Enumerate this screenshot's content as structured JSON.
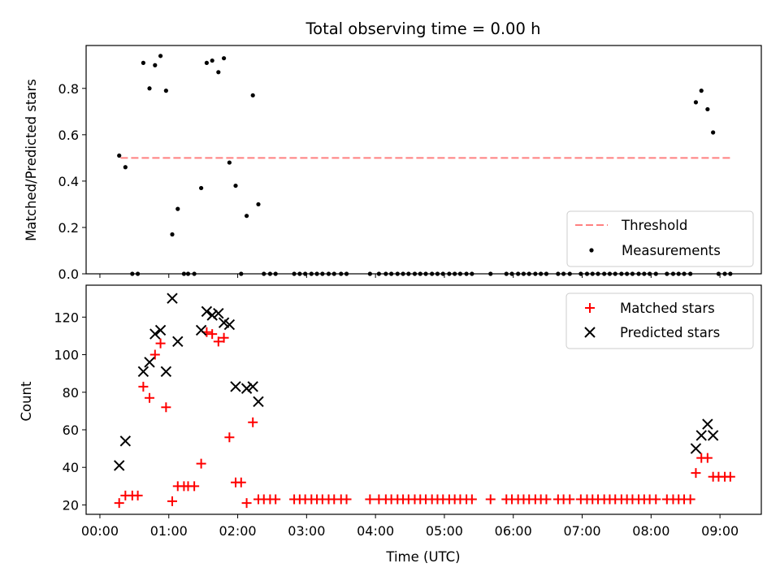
{
  "chart_data": [
    {
      "type": "scatter",
      "title": "Total observing time = 0.00 h",
      "xlabel": "",
      "ylabel": "Matched/Predicted stars",
      "xlim": [
        -0.2,
        9.6
      ],
      "ylim": [
        0.0,
        0.985
      ],
      "yticks": [
        0.0,
        0.2,
        0.4,
        0.6,
        0.8
      ],
      "ytick_labels": [
        "0.0",
        "0.2",
        "0.4",
        "0.6",
        "0.8"
      ],
      "legend_position": "lower-right",
      "grid": false,
      "series": [
        {
          "name": "Threshold",
          "kind": "dashed-line",
          "color": "#ff8080",
          "points": [
            [
              0.3,
              0.5
            ],
            [
              9.15,
              0.5
            ]
          ]
        },
        {
          "name": "Measurements",
          "kind": "dot",
          "color": "#000000",
          "points": [
            [
              0.28,
              0.51
            ],
            [
              0.37,
              0.46
            ],
            [
              0.47,
              0.0
            ],
            [
              0.55,
              0.0
            ],
            [
              0.63,
              0.91
            ],
            [
              0.72,
              0.8
            ],
            [
              0.8,
              0.9
            ],
            [
              0.88,
              0.94
            ],
            [
              0.96,
              0.79
            ],
            [
              1.05,
              0.17
            ],
            [
              1.13,
              0.28
            ],
            [
              1.22,
              0.0
            ],
            [
              1.28,
              0.0
            ],
            [
              1.37,
              0.0
            ],
            [
              1.47,
              0.37
            ],
            [
              1.55,
              0.91
            ],
            [
              1.63,
              0.92
            ],
            [
              1.72,
              0.87
            ],
            [
              1.8,
              0.93
            ],
            [
              1.88,
              0.48
            ],
            [
              1.97,
              0.38
            ],
            [
              2.05,
              0.0
            ],
            [
              2.13,
              0.25
            ],
            [
              2.22,
              0.77
            ],
            [
              2.3,
              0.3
            ],
            [
              2.38,
              0.0
            ],
            [
              2.47,
              0.0
            ],
            [
              2.55,
              0.0
            ],
            [
              2.82,
              0.0
            ],
            [
              2.9,
              0.0
            ],
            [
              2.98,
              0.0
            ],
            [
              3.07,
              0.0
            ],
            [
              3.15,
              0.0
            ],
            [
              3.23,
              0.0
            ],
            [
              3.32,
              0.0
            ],
            [
              3.4,
              0.0
            ],
            [
              3.5,
              0.0
            ],
            [
              3.58,
              0.0
            ],
            [
              3.92,
              0.0
            ],
            [
              4.05,
              0.0
            ],
            [
              4.15,
              0.0
            ],
            [
              4.23,
              0.0
            ],
            [
              4.32,
              0.0
            ],
            [
              4.4,
              0.0
            ],
            [
              4.48,
              0.0
            ],
            [
              4.57,
              0.0
            ],
            [
              4.65,
              0.0
            ],
            [
              4.73,
              0.0
            ],
            [
              4.82,
              0.0
            ],
            [
              4.9,
              0.0
            ],
            [
              4.98,
              0.0
            ],
            [
              5.07,
              0.0
            ],
            [
              5.15,
              0.0
            ],
            [
              5.23,
              0.0
            ],
            [
              5.32,
              0.0
            ],
            [
              5.4,
              0.0
            ],
            [
              5.67,
              0.0
            ],
            [
              5.9,
              0.0
            ],
            [
              5.98,
              0.0
            ],
            [
              6.07,
              0.0
            ],
            [
              6.15,
              0.0
            ],
            [
              6.23,
              0.0
            ],
            [
              6.32,
              0.0
            ],
            [
              6.4,
              0.0
            ],
            [
              6.48,
              0.0
            ],
            [
              6.65,
              0.0
            ],
            [
              6.73,
              0.0
            ],
            [
              6.82,
              0.0
            ],
            [
              6.98,
              0.0
            ],
            [
              7.07,
              0.0
            ],
            [
              7.15,
              0.0
            ],
            [
              7.23,
              0.0
            ],
            [
              7.32,
              0.0
            ],
            [
              7.4,
              0.0
            ],
            [
              7.48,
              0.0
            ],
            [
              7.57,
              0.0
            ],
            [
              7.65,
              0.0
            ],
            [
              7.73,
              0.0
            ],
            [
              7.82,
              0.0
            ],
            [
              7.9,
              0.0
            ],
            [
              7.98,
              0.0
            ],
            [
              8.07,
              0.0
            ],
            [
              8.23,
              0.0
            ],
            [
              8.32,
              0.0
            ],
            [
              8.4,
              0.0
            ],
            [
              8.48,
              0.0
            ],
            [
              8.57,
              0.0
            ],
            [
              8.65,
              0.74
            ],
            [
              8.73,
              0.79
            ],
            [
              8.82,
              0.71
            ],
            [
              8.9,
              0.61
            ],
            [
              8.98,
              0.0
            ],
            [
              9.07,
              0.0
            ],
            [
              9.15,
              0.0
            ]
          ]
        }
      ]
    },
    {
      "type": "scatter",
      "title": "",
      "xlabel": "Time (UTC)",
      "ylabel": "Count",
      "xlim": [
        -0.2,
        9.6
      ],
      "ylim": [
        15.0,
        137.0
      ],
      "xticks": [
        0,
        1,
        2,
        3,
        4,
        5,
        6,
        7,
        8,
        9
      ],
      "xtick_labels": [
        "00:00",
        "01:00",
        "02:00",
        "03:00",
        "04:00",
        "05:00",
        "06:00",
        "07:00",
        "08:00",
        "09:00"
      ],
      "yticks": [
        20,
        40,
        60,
        80,
        100,
        120
      ],
      "ytick_labels": [
        "20",
        "40",
        "60",
        "80",
        "100",
        "120"
      ],
      "legend_position": "upper-right",
      "grid": false,
      "series": [
        {
          "name": "Matched stars",
          "kind": "plus",
          "color": "#ff0000",
          "points": [
            [
              0.28,
              21
            ],
            [
              0.37,
              25
            ],
            [
              0.47,
              25
            ],
            [
              0.55,
              25
            ],
            [
              0.63,
              83
            ],
            [
              0.72,
              77
            ],
            [
              0.8,
              100
            ],
            [
              0.88,
              106
            ],
            [
              0.96,
              72
            ],
            [
              1.05,
              22
            ],
            [
              1.13,
              30
            ],
            [
              1.22,
              30
            ],
            [
              1.28,
              30
            ],
            [
              1.37,
              30
            ],
            [
              1.47,
              42
            ],
            [
              1.55,
              112
            ],
            [
              1.63,
              111
            ],
            [
              1.72,
              107
            ],
            [
              1.8,
              109
            ],
            [
              1.88,
              56
            ],
            [
              1.97,
              32
            ],
            [
              2.05,
              32
            ],
            [
              2.13,
              21
            ],
            [
              2.22,
              64
            ],
            [
              2.3,
              23
            ],
            [
              2.38,
              23
            ],
            [
              2.47,
              23
            ],
            [
              2.55,
              23
            ],
            [
              2.82,
              23
            ],
            [
              2.9,
              23
            ],
            [
              2.98,
              23
            ],
            [
              3.07,
              23
            ],
            [
              3.15,
              23
            ],
            [
              3.23,
              23
            ],
            [
              3.32,
              23
            ],
            [
              3.4,
              23
            ],
            [
              3.5,
              23
            ],
            [
              3.58,
              23
            ],
            [
              3.92,
              23
            ],
            [
              4.05,
              23
            ],
            [
              4.15,
              23
            ],
            [
              4.23,
              23
            ],
            [
              4.32,
              23
            ],
            [
              4.4,
              23
            ],
            [
              4.48,
              23
            ],
            [
              4.57,
              23
            ],
            [
              4.65,
              23
            ],
            [
              4.73,
              23
            ],
            [
              4.82,
              23
            ],
            [
              4.9,
              23
            ],
            [
              4.98,
              23
            ],
            [
              5.07,
              23
            ],
            [
              5.15,
              23
            ],
            [
              5.23,
              23
            ],
            [
              5.32,
              23
            ],
            [
              5.4,
              23
            ],
            [
              5.67,
              23
            ],
            [
              5.9,
              23
            ],
            [
              5.98,
              23
            ],
            [
              6.07,
              23
            ],
            [
              6.15,
              23
            ],
            [
              6.23,
              23
            ],
            [
              6.32,
              23
            ],
            [
              6.4,
              23
            ],
            [
              6.48,
              23
            ],
            [
              6.65,
              23
            ],
            [
              6.73,
              23
            ],
            [
              6.82,
              23
            ],
            [
              6.98,
              23
            ],
            [
              7.07,
              23
            ],
            [
              7.15,
              23
            ],
            [
              7.23,
              23
            ],
            [
              7.32,
              23
            ],
            [
              7.4,
              23
            ],
            [
              7.48,
              23
            ],
            [
              7.57,
              23
            ],
            [
              7.65,
              23
            ],
            [
              7.73,
              23
            ],
            [
              7.82,
              23
            ],
            [
              7.9,
              23
            ],
            [
              7.98,
              23
            ],
            [
              8.07,
              23
            ],
            [
              8.23,
              23
            ],
            [
              8.32,
              23
            ],
            [
              8.4,
              23
            ],
            [
              8.48,
              23
            ],
            [
              8.57,
              23
            ],
            [
              8.65,
              37
            ],
            [
              8.73,
              45
            ],
            [
              8.82,
              45
            ],
            [
              8.9,
              35
            ],
            [
              8.98,
              35
            ],
            [
              9.07,
              35
            ],
            [
              9.15,
              35
            ]
          ]
        },
        {
          "name": "Predicted stars",
          "kind": "x",
          "color": "#000000",
          "points": [
            [
              0.28,
              41
            ],
            [
              0.37,
              54
            ],
            [
              0.63,
              91
            ],
            [
              0.72,
              96
            ],
            [
              0.8,
              111
            ],
            [
              0.88,
              113
            ],
            [
              0.96,
              91
            ],
            [
              1.05,
              130
            ],
            [
              1.13,
              107
            ],
            [
              1.47,
              113
            ],
            [
              1.55,
              123
            ],
            [
              1.63,
              121
            ],
            [
              1.72,
              122
            ],
            [
              1.8,
              117
            ],
            [
              1.88,
              116
            ],
            [
              1.97,
              83
            ],
            [
              2.13,
              82
            ],
            [
              2.22,
              83
            ],
            [
              2.3,
              75
            ],
            [
              8.65,
              50
            ],
            [
              8.73,
              57
            ],
            [
              8.82,
              63
            ],
            [
              8.9,
              57
            ]
          ]
        }
      ]
    }
  ]
}
